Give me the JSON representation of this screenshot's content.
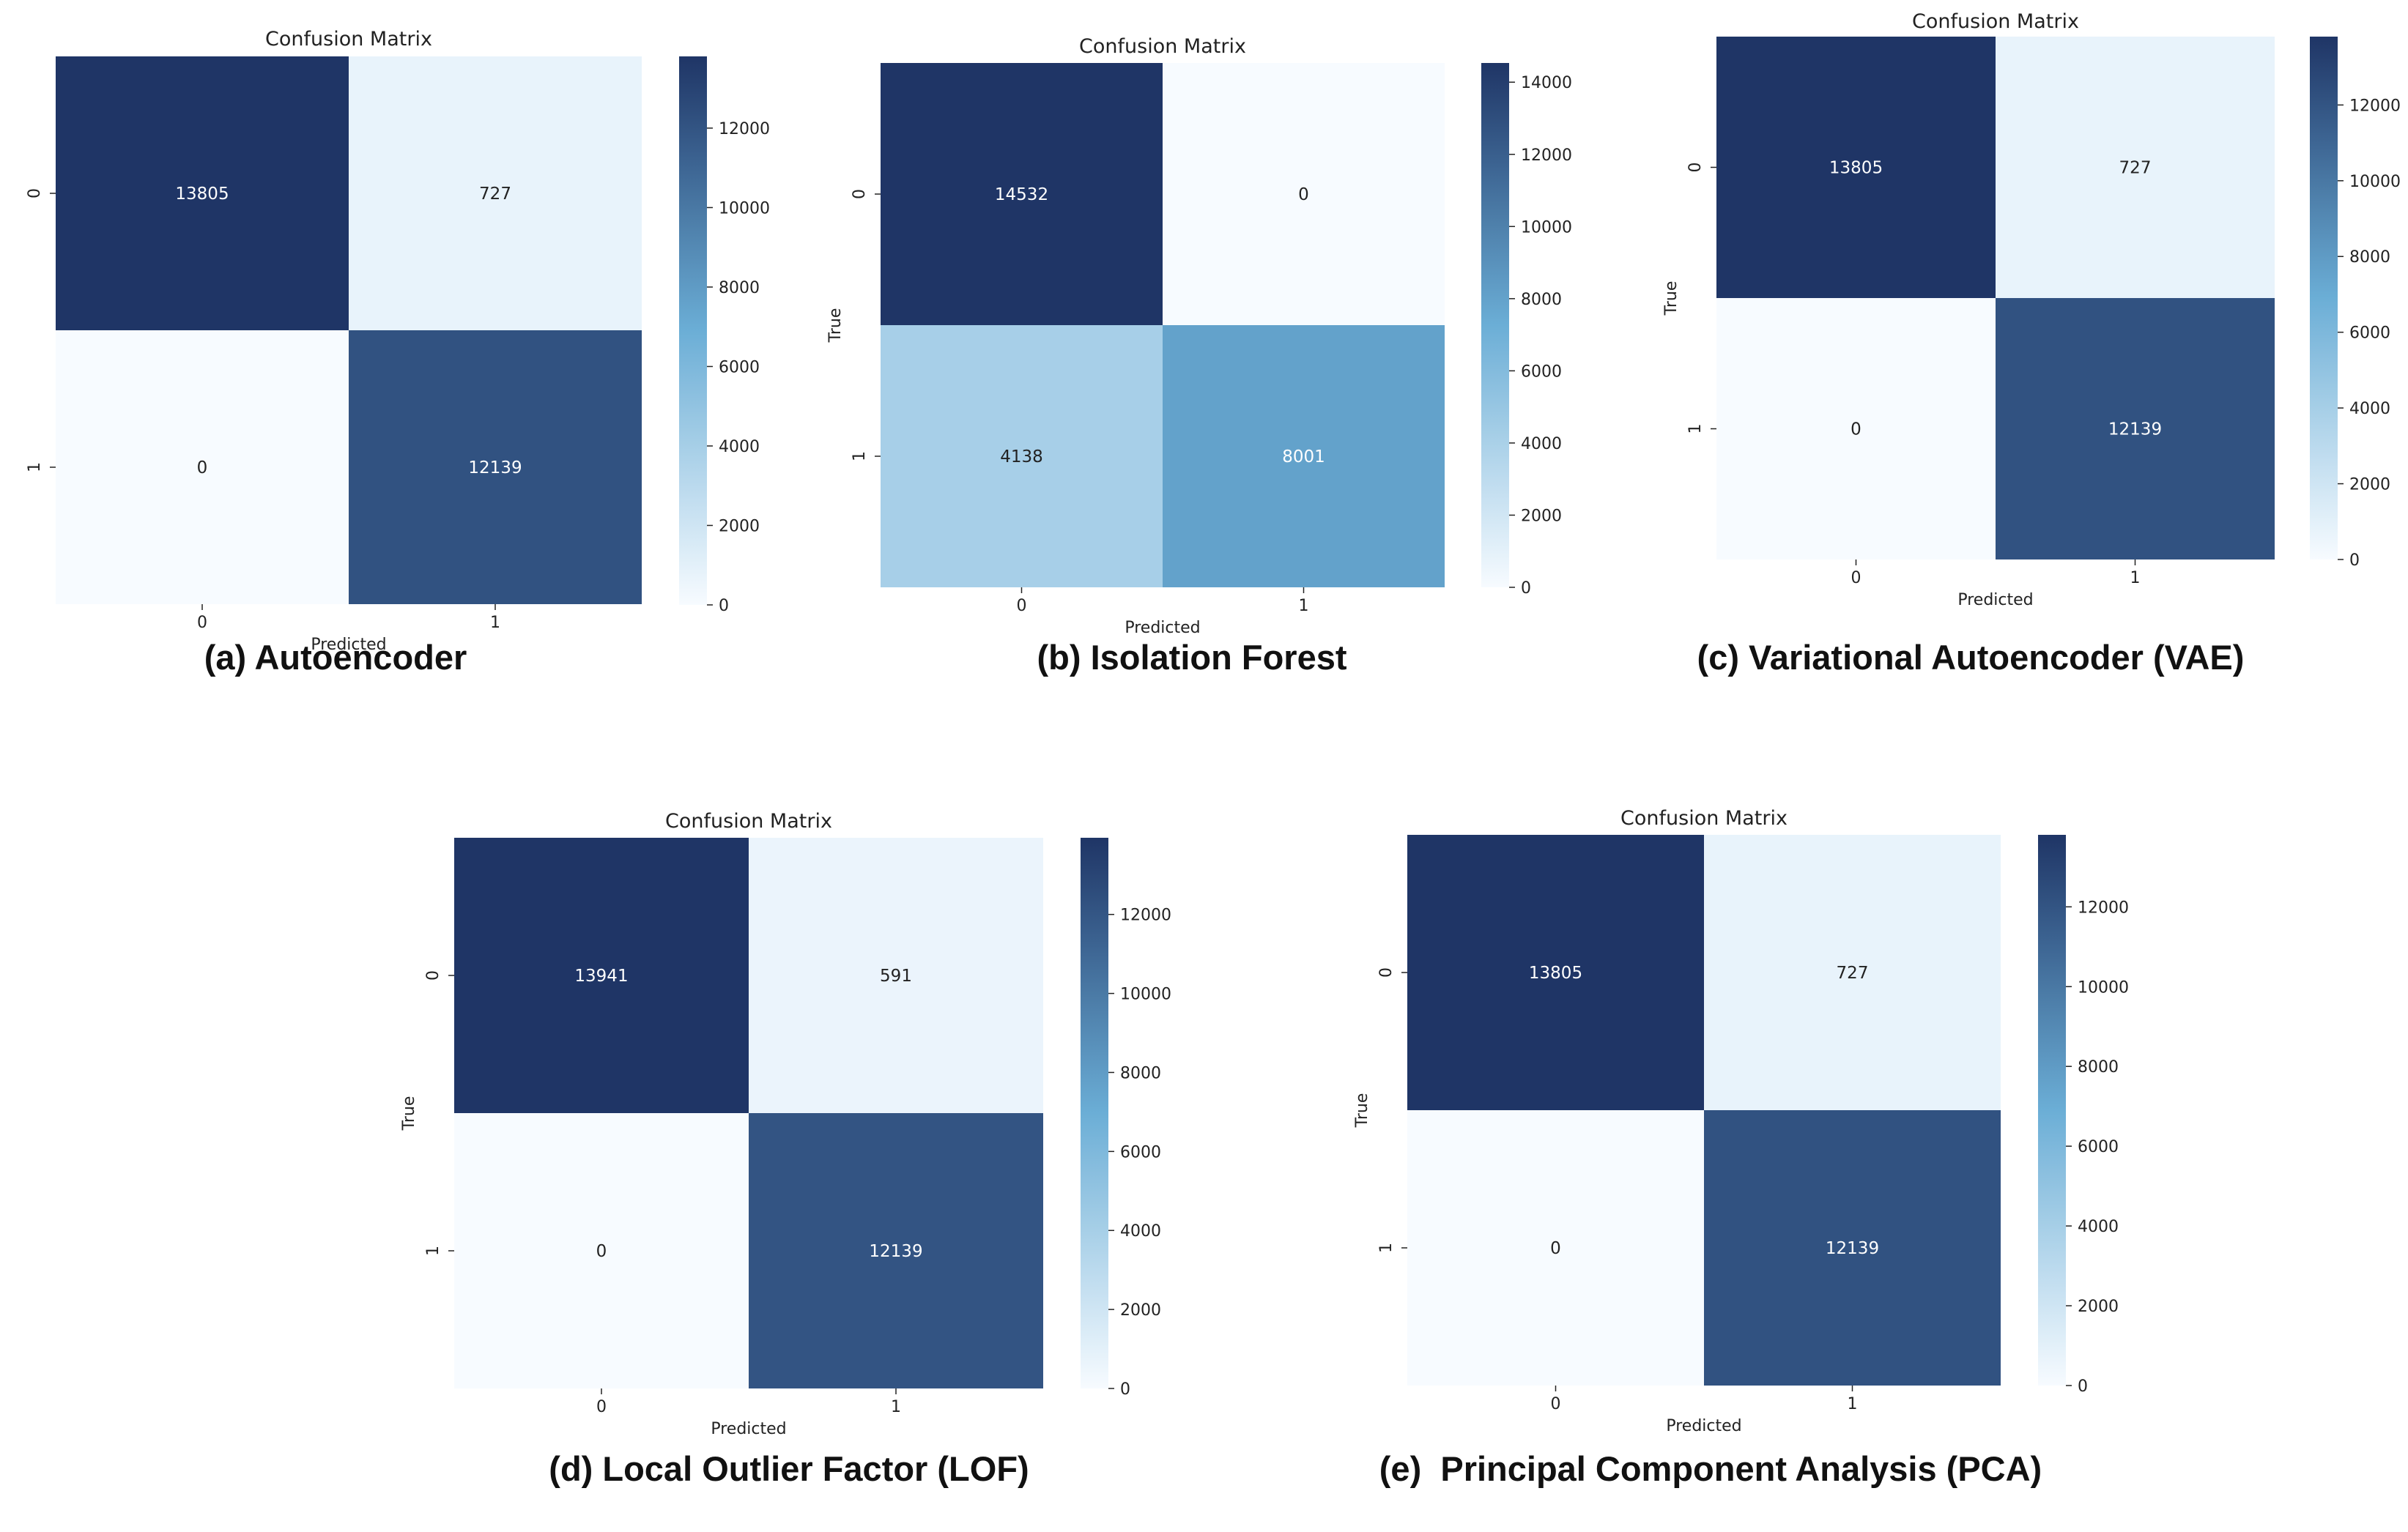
{
  "colors": {
    "cmap_low": "#f7fbff",
    "cmap_mid": "#6baed6",
    "cmap_high": "#1f3566",
    "text_dark": "#222222",
    "text_light": "#ffffff"
  },
  "chart_data": [
    {
      "type": "heatmap",
      "caption": "(a) Autoencoder",
      "title": "Confusion Matrix",
      "xlabel": "Predicted",
      "ylabel": "",
      "x_ticks": [
        "0",
        "1"
      ],
      "y_ticks": [
        "0",
        "1"
      ],
      "values": [
        [
          13805,
          727
        ],
        [
          0,
          12139
        ]
      ],
      "colorbar": {
        "min": 0,
        "max": 13805,
        "ticks": [
          "0",
          "2000",
          "4000",
          "6000",
          "8000",
          "10000",
          "12000"
        ]
      }
    },
    {
      "type": "heatmap",
      "caption": "(b) Isolation Forest",
      "title": "Confusion Matrix",
      "xlabel": "Predicted",
      "ylabel": "True",
      "x_ticks": [
        "0",
        "1"
      ],
      "y_ticks": [
        "0",
        "1"
      ],
      "values": [
        [
          14532,
          0
        ],
        [
          4138,
          8001
        ]
      ],
      "colorbar": {
        "min": 0,
        "max": 14532,
        "ticks": [
          "0",
          "2000",
          "4000",
          "6000",
          "8000",
          "10000",
          "12000",
          "14000"
        ]
      }
    },
    {
      "type": "heatmap",
      "caption": "(c) Variational Autoencoder (VAE)",
      "title": "Confusion Matrix",
      "xlabel": "Predicted",
      "ylabel": "True",
      "x_ticks": [
        "0",
        "1"
      ],
      "y_ticks": [
        "0",
        "1"
      ],
      "values": [
        [
          13805,
          727
        ],
        [
          0,
          12139
        ]
      ],
      "colorbar": {
        "min": 0,
        "max": 13805,
        "ticks": [
          "0",
          "2000",
          "4000",
          "6000",
          "8000",
          "10000",
          "12000"
        ]
      }
    },
    {
      "type": "heatmap",
      "caption": "(d) Local Outlier Factor (LOF)",
      "title": "Confusion Matrix",
      "xlabel": "Predicted",
      "ylabel": "True",
      "x_ticks": [
        "0",
        "1"
      ],
      "y_ticks": [
        "0",
        "1"
      ],
      "values": [
        [
          13941,
          591
        ],
        [
          0,
          12139
        ]
      ],
      "colorbar": {
        "min": 0,
        "max": 13941,
        "ticks": [
          "0",
          "2000",
          "4000",
          "6000",
          "8000",
          "10000",
          "12000"
        ]
      }
    },
    {
      "type": "heatmap",
      "caption": "(e)  Principal Component Analysis (PCA)",
      "title": "Confusion Matrix",
      "xlabel": "Predicted",
      "ylabel": "True",
      "x_ticks": [
        "0",
        "1"
      ],
      "y_ticks": [
        "0",
        "1"
      ],
      "values": [
        [
          13805,
          727
        ],
        [
          0,
          12139
        ]
      ],
      "colorbar": {
        "min": 0,
        "max": 13805,
        "ticks": [
          "0",
          "2000",
          "4000",
          "6000",
          "8000",
          "10000",
          "12000"
        ]
      }
    }
  ]
}
